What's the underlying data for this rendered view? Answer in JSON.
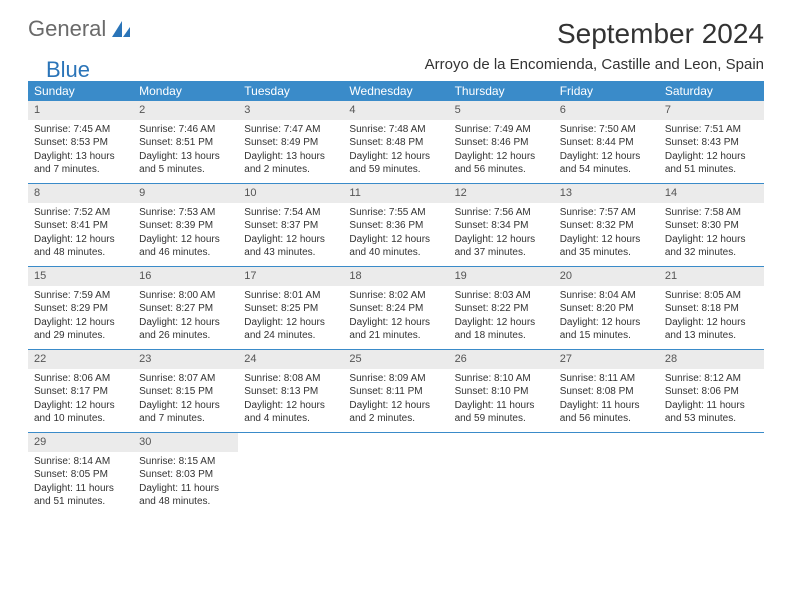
{
  "brand": {
    "word1": "General",
    "word2": "Blue"
  },
  "title": "September 2024",
  "location": "Arroyo de la Encomienda, Castille and Leon, Spain",
  "colors": {
    "header_bg": "#3a8bc9",
    "header_text": "#ffffff",
    "daynum_bg": "#ebebeb",
    "border": "#3a8bc9",
    "brand_gray": "#6a6a6a",
    "brand_blue": "#2a74b8",
    "body_text": "#333333"
  },
  "weekdays": [
    "Sunday",
    "Monday",
    "Tuesday",
    "Wednesday",
    "Thursday",
    "Friday",
    "Saturday"
  ],
  "weeks": [
    [
      {
        "n": "1",
        "sr": "Sunrise: 7:45 AM",
        "ss": "Sunset: 8:53 PM",
        "dl": "Daylight: 13 hours and 7 minutes."
      },
      {
        "n": "2",
        "sr": "Sunrise: 7:46 AM",
        "ss": "Sunset: 8:51 PM",
        "dl": "Daylight: 13 hours and 5 minutes."
      },
      {
        "n": "3",
        "sr": "Sunrise: 7:47 AM",
        "ss": "Sunset: 8:49 PM",
        "dl": "Daylight: 13 hours and 2 minutes."
      },
      {
        "n": "4",
        "sr": "Sunrise: 7:48 AM",
        "ss": "Sunset: 8:48 PM",
        "dl": "Daylight: 12 hours and 59 minutes."
      },
      {
        "n": "5",
        "sr": "Sunrise: 7:49 AM",
        "ss": "Sunset: 8:46 PM",
        "dl": "Daylight: 12 hours and 56 minutes."
      },
      {
        "n": "6",
        "sr": "Sunrise: 7:50 AM",
        "ss": "Sunset: 8:44 PM",
        "dl": "Daylight: 12 hours and 54 minutes."
      },
      {
        "n": "7",
        "sr": "Sunrise: 7:51 AM",
        "ss": "Sunset: 8:43 PM",
        "dl": "Daylight: 12 hours and 51 minutes."
      }
    ],
    [
      {
        "n": "8",
        "sr": "Sunrise: 7:52 AM",
        "ss": "Sunset: 8:41 PM",
        "dl": "Daylight: 12 hours and 48 minutes."
      },
      {
        "n": "9",
        "sr": "Sunrise: 7:53 AM",
        "ss": "Sunset: 8:39 PM",
        "dl": "Daylight: 12 hours and 46 minutes."
      },
      {
        "n": "10",
        "sr": "Sunrise: 7:54 AM",
        "ss": "Sunset: 8:37 PM",
        "dl": "Daylight: 12 hours and 43 minutes."
      },
      {
        "n": "11",
        "sr": "Sunrise: 7:55 AM",
        "ss": "Sunset: 8:36 PM",
        "dl": "Daylight: 12 hours and 40 minutes."
      },
      {
        "n": "12",
        "sr": "Sunrise: 7:56 AM",
        "ss": "Sunset: 8:34 PM",
        "dl": "Daylight: 12 hours and 37 minutes."
      },
      {
        "n": "13",
        "sr": "Sunrise: 7:57 AM",
        "ss": "Sunset: 8:32 PM",
        "dl": "Daylight: 12 hours and 35 minutes."
      },
      {
        "n": "14",
        "sr": "Sunrise: 7:58 AM",
        "ss": "Sunset: 8:30 PM",
        "dl": "Daylight: 12 hours and 32 minutes."
      }
    ],
    [
      {
        "n": "15",
        "sr": "Sunrise: 7:59 AM",
        "ss": "Sunset: 8:29 PM",
        "dl": "Daylight: 12 hours and 29 minutes."
      },
      {
        "n": "16",
        "sr": "Sunrise: 8:00 AM",
        "ss": "Sunset: 8:27 PM",
        "dl": "Daylight: 12 hours and 26 minutes."
      },
      {
        "n": "17",
        "sr": "Sunrise: 8:01 AM",
        "ss": "Sunset: 8:25 PM",
        "dl": "Daylight: 12 hours and 24 minutes."
      },
      {
        "n": "18",
        "sr": "Sunrise: 8:02 AM",
        "ss": "Sunset: 8:24 PM",
        "dl": "Daylight: 12 hours and 21 minutes."
      },
      {
        "n": "19",
        "sr": "Sunrise: 8:03 AM",
        "ss": "Sunset: 8:22 PM",
        "dl": "Daylight: 12 hours and 18 minutes."
      },
      {
        "n": "20",
        "sr": "Sunrise: 8:04 AM",
        "ss": "Sunset: 8:20 PM",
        "dl": "Daylight: 12 hours and 15 minutes."
      },
      {
        "n": "21",
        "sr": "Sunrise: 8:05 AM",
        "ss": "Sunset: 8:18 PM",
        "dl": "Daylight: 12 hours and 13 minutes."
      }
    ],
    [
      {
        "n": "22",
        "sr": "Sunrise: 8:06 AM",
        "ss": "Sunset: 8:17 PM",
        "dl": "Daylight: 12 hours and 10 minutes."
      },
      {
        "n": "23",
        "sr": "Sunrise: 8:07 AM",
        "ss": "Sunset: 8:15 PM",
        "dl": "Daylight: 12 hours and 7 minutes."
      },
      {
        "n": "24",
        "sr": "Sunrise: 8:08 AM",
        "ss": "Sunset: 8:13 PM",
        "dl": "Daylight: 12 hours and 4 minutes."
      },
      {
        "n": "25",
        "sr": "Sunrise: 8:09 AM",
        "ss": "Sunset: 8:11 PM",
        "dl": "Daylight: 12 hours and 2 minutes."
      },
      {
        "n": "26",
        "sr": "Sunrise: 8:10 AM",
        "ss": "Sunset: 8:10 PM",
        "dl": "Daylight: 11 hours and 59 minutes."
      },
      {
        "n": "27",
        "sr": "Sunrise: 8:11 AM",
        "ss": "Sunset: 8:08 PM",
        "dl": "Daylight: 11 hours and 56 minutes."
      },
      {
        "n": "28",
        "sr": "Sunrise: 8:12 AM",
        "ss": "Sunset: 8:06 PM",
        "dl": "Daylight: 11 hours and 53 minutes."
      }
    ],
    [
      {
        "n": "29",
        "sr": "Sunrise: 8:14 AM",
        "ss": "Sunset: 8:05 PM",
        "dl": "Daylight: 11 hours and 51 minutes."
      },
      {
        "n": "30",
        "sr": "Sunrise: 8:15 AM",
        "ss": "Sunset: 8:03 PM",
        "dl": "Daylight: 11 hours and 48 minutes."
      },
      null,
      null,
      null,
      null,
      null
    ]
  ]
}
